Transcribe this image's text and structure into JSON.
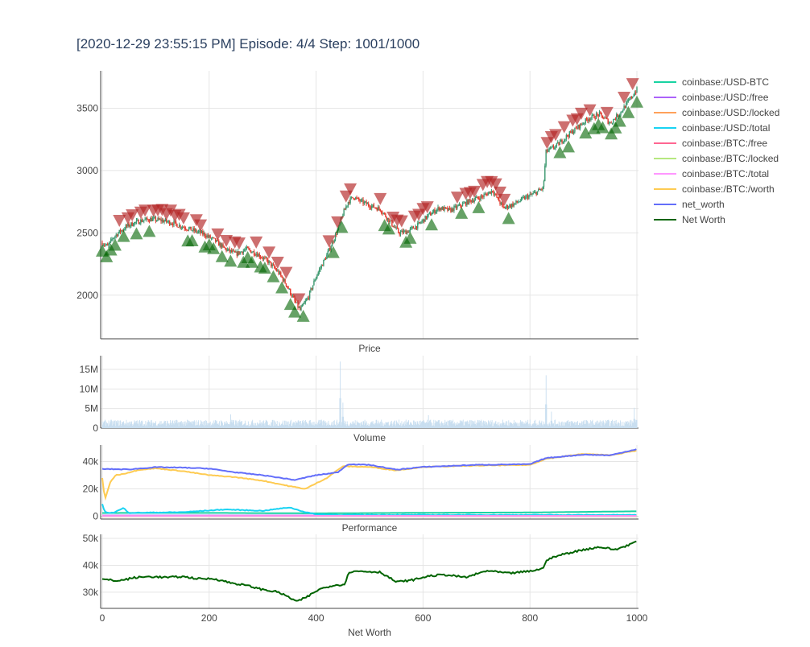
{
  "title": "[2020-12-29 23:55:15 PM] Episode: 4/4 Step: 1001/1000",
  "chart_data": [
    {
      "id": "price",
      "type": "candlestick",
      "label": "Price",
      "x_range": [
        -3,
        1003
      ],
      "y_range": [
        1650,
        3800
      ],
      "y_ticks": [
        2000,
        2500,
        3000,
        3500
      ],
      "y_tick_labels": [
        "2000",
        "2500",
        "3000",
        "3500"
      ],
      "anchors": [
        [
          0,
          2420
        ],
        [
          10,
          2390
        ],
        [
          20,
          2460
        ],
        [
          30,
          2500
        ],
        [
          45,
          2550
        ],
        [
          60,
          2580
        ],
        [
          75,
          2600
        ],
        [
          90,
          2610
        ],
        [
          110,
          2600
        ],
        [
          130,
          2580
        ],
        [
          150,
          2550
        ],
        [
          170,
          2520
        ],
        [
          190,
          2490
        ],
        [
          210,
          2440
        ],
        [
          230,
          2370
        ],
        [
          250,
          2330
        ],
        [
          270,
          2370
        ],
        [
          290,
          2330
        ],
        [
          310,
          2270
        ],
        [
          330,
          2180
        ],
        [
          345,
          2080
        ],
        [
          360,
          1950
        ],
        [
          370,
          1880
        ],
        [
          385,
          1980
        ],
        [
          400,
          2150
        ],
        [
          420,
          2320
        ],
        [
          440,
          2520
        ],
        [
          450,
          2650
        ],
        [
          460,
          2750
        ],
        [
          470,
          2790
        ],
        [
          480,
          2760
        ],
        [
          500,
          2720
        ],
        [
          520,
          2690
        ],
        [
          540,
          2580
        ],
        [
          555,
          2500
        ],
        [
          570,
          2510
        ],
        [
          590,
          2560
        ],
        [
          610,
          2640
        ],
        [
          630,
          2700
        ],
        [
          650,
          2680
        ],
        [
          670,
          2720
        ],
        [
          690,
          2760
        ],
        [
          710,
          2790
        ],
        [
          730,
          2840
        ],
        [
          750,
          2700
        ],
        [
          770,
          2730
        ],
        [
          790,
          2780
        ],
        [
          810,
          2820
        ],
        [
          825,
          2860
        ],
        [
          830,
          3150
        ],
        [
          850,
          3200
        ],
        [
          870,
          3280
        ],
        [
          890,
          3350
        ],
        [
          910,
          3420
        ],
        [
          930,
          3450
        ],
        [
          950,
          3380
        ],
        [
          970,
          3470
        ],
        [
          985,
          3560
        ],
        [
          1000,
          3650
        ]
      ],
      "buy_marker_color": "#006400",
      "sell_marker_color": "#b22222",
      "increasing_color": "#3d9970",
      "decreasing_color": "#e23b2e"
    },
    {
      "id": "volume",
      "type": "bar",
      "label": "Volume",
      "x_range": [
        -3,
        1003
      ],
      "y_range": [
        0,
        18500000
      ],
      "y_ticks": [
        0,
        5000000,
        10000000,
        15000000
      ],
      "y_tick_labels": [
        "0",
        "5M",
        "10M",
        "15M"
      ],
      "baseline": 1200000,
      "spikes": [
        [
          240,
          3500000
        ],
        [
          445,
          17000000
        ],
        [
          450,
          6500000
        ],
        [
          610,
          3300000
        ],
        [
          830,
          13500000
        ],
        [
          840,
          4200000
        ],
        [
          995,
          5200000
        ]
      ],
      "color": "#c8def0"
    },
    {
      "id": "performance",
      "type": "line",
      "label": "Performance",
      "x_range": [
        -3,
        1003
      ],
      "y_range": [
        -2000,
        52000
      ],
      "y_ticks": [
        0,
        20000,
        40000
      ],
      "y_tick_labels": [
        "0",
        "20k",
        "40k"
      ],
      "series": [
        {
          "name": "coinbase:/USD-BTC",
          "color": "#19d3a2",
          "values": [
            [
              0,
              2420
            ],
            [
              200,
              2490
            ],
            [
              400,
              2150
            ],
            [
              600,
              2560
            ],
            [
              800,
              2800
            ],
            [
              1000,
              3650
            ]
          ]
        },
        {
          "name": "coinbase:/USD:/free",
          "color": "#ab63fa",
          "values": [
            [
              0,
              600
            ],
            [
              1000,
              600
            ]
          ]
        },
        {
          "name": "coinbase:/USD:/locked",
          "color": "#ffa15a",
          "values": [
            [
              0,
              0
            ],
            [
              1000,
              0
            ]
          ]
        },
        {
          "name": "coinbase:/USD:/total",
          "color": "#19d3f3",
          "values": [
            [
              0,
              9000
            ],
            [
              5,
              3000
            ],
            [
              20,
              2500
            ],
            [
              40,
              6000
            ],
            [
              50,
              2500
            ],
            [
              150,
              3000
            ],
            [
              230,
              5000
            ],
            [
              300,
              4000
            ],
            [
              350,
              6500
            ],
            [
              380,
              3000
            ],
            [
              400,
              1500
            ],
            [
              450,
              1000
            ],
            [
              1000,
              1000
            ]
          ]
        },
        {
          "name": "coinbase:/BTC:/free",
          "color": "#ff6692",
          "values": [
            [
              0,
              300
            ],
            [
              1000,
              300
            ]
          ]
        },
        {
          "name": "coinbase:/BTC:/locked",
          "color": "#b6e880",
          "values": [
            [
              0,
              0
            ],
            [
              1000,
              0
            ]
          ]
        },
        {
          "name": "coinbase:/BTC:/total",
          "color": "#ff97ff",
          "values": [
            [
              0,
              150
            ],
            [
              1000,
              150
            ]
          ]
        },
        {
          "name": "coinbase:/BTC:/worth",
          "color": "#fecb52",
          "values": [
            [
              0,
              28000
            ],
            [
              5,
              12000
            ],
            [
              15,
              25000
            ],
            [
              25,
              30000
            ],
            [
              40,
              31000
            ],
            [
              70,
              34000
            ],
            [
              100,
              35000
            ],
            [
              150,
              33000
            ],
            [
              200,
              30000
            ],
            [
              250,
              28500
            ],
            [
              300,
              26000
            ],
            [
              350,
              22000
            ],
            [
              380,
              20000
            ],
            [
              420,
              28000
            ],
            [
              450,
              36500
            ],
            [
              500,
              36000
            ],
            [
              550,
              33500
            ],
            [
              600,
              36000
            ],
            [
              700,
              37000
            ],
            [
              800,
              37500
            ],
            [
              830,
              42000
            ],
            [
              900,
              45500
            ],
            [
              950,
              44500
            ],
            [
              1000,
              48000
            ]
          ]
        },
        {
          "name": "net_worth",
          "color": "#636efa",
          "values": [
            [
              0,
              34500
            ],
            [
              50,
              34200
            ],
            [
              100,
              35800
            ],
            [
              150,
              35500
            ],
            [
              200,
              34800
            ],
            [
              250,
              32000
            ],
            [
              300,
              30000
            ],
            [
              360,
              26500
            ],
            [
              400,
              30000
            ],
            [
              440,
              32000
            ],
            [
              460,
              38000
            ],
            [
              500,
              37500
            ],
            [
              550,
              34000
            ],
            [
              600,
              36000
            ],
            [
              700,
              37500
            ],
            [
              800,
              38000
            ],
            [
              830,
              42500
            ],
            [
              900,
              45000
            ],
            [
              950,
              44500
            ],
            [
              1000,
              49000
            ]
          ]
        }
      ]
    },
    {
      "id": "networth",
      "type": "line",
      "label": "Net Worth",
      "x_range": [
        -3,
        1003
      ],
      "y_range": [
        24000,
        51500
      ],
      "y_ticks": [
        30000,
        40000,
        50000
      ],
      "y_tick_labels": [
        "30k",
        "40k",
        "50k"
      ],
      "x_ticks": [
        0,
        200,
        400,
        600,
        800,
        1000
      ],
      "x_tick_labels": [
        "0",
        "200",
        "400",
        "600",
        "800",
        "1000"
      ],
      "series": [
        {
          "name": "Net Worth",
          "color": "#006400",
          "values": [
            [
              0,
              34800
            ],
            [
              30,
              34200
            ],
            [
              60,
              35400
            ],
            [
              90,
              35800
            ],
            [
              120,
              35500
            ],
            [
              150,
              35800
            ],
            [
              180,
              35000
            ],
            [
              210,
              35000
            ],
            [
              240,
              33500
            ],
            [
              270,
              32500
            ],
            [
              300,
              31000
            ],
            [
              330,
              30000
            ],
            [
              350,
              28000
            ],
            [
              365,
              26500
            ],
            [
              385,
              28500
            ],
            [
              405,
              31000
            ],
            [
              430,
              32500
            ],
            [
              455,
              33000
            ],
            [
              460,
              37500
            ],
            [
              480,
              37800
            ],
            [
              520,
              37500
            ],
            [
              550,
              33800
            ],
            [
              580,
              34500
            ],
            [
              610,
              36000
            ],
            [
              640,
              36500
            ],
            [
              680,
              35500
            ],
            [
              720,
              38000
            ],
            [
              760,
              37000
            ],
            [
              800,
              37800
            ],
            [
              825,
              38800
            ],
            [
              830,
              42000
            ],
            [
              860,
              44000
            ],
            [
              900,
              45800
            ],
            [
              930,
              46800
            ],
            [
              960,
              45800
            ],
            [
              990,
              48000
            ],
            [
              1000,
              49000
            ]
          ]
        }
      ]
    }
  ],
  "legend": [
    {
      "label": "coinbase:/USD-BTC",
      "color": "#19d3a2"
    },
    {
      "label": "coinbase:/USD:/free",
      "color": "#ab63fa"
    },
    {
      "label": "coinbase:/USD:/locked",
      "color": "#ffa15a"
    },
    {
      "label": "coinbase:/USD:/total",
      "color": "#19d3f3"
    },
    {
      "label": "coinbase:/BTC:/free",
      "color": "#ff6692"
    },
    {
      "label": "coinbase:/BTC:/locked",
      "color": "#b6e880"
    },
    {
      "label": "coinbase:/BTC:/total",
      "color": "#ff97ff"
    },
    {
      "label": "coinbase:/BTC:/worth",
      "color": "#fecb52"
    },
    {
      "label": "net_worth",
      "color": "#636efa"
    },
    {
      "label": "Net Worth",
      "color": "#006400"
    }
  ]
}
